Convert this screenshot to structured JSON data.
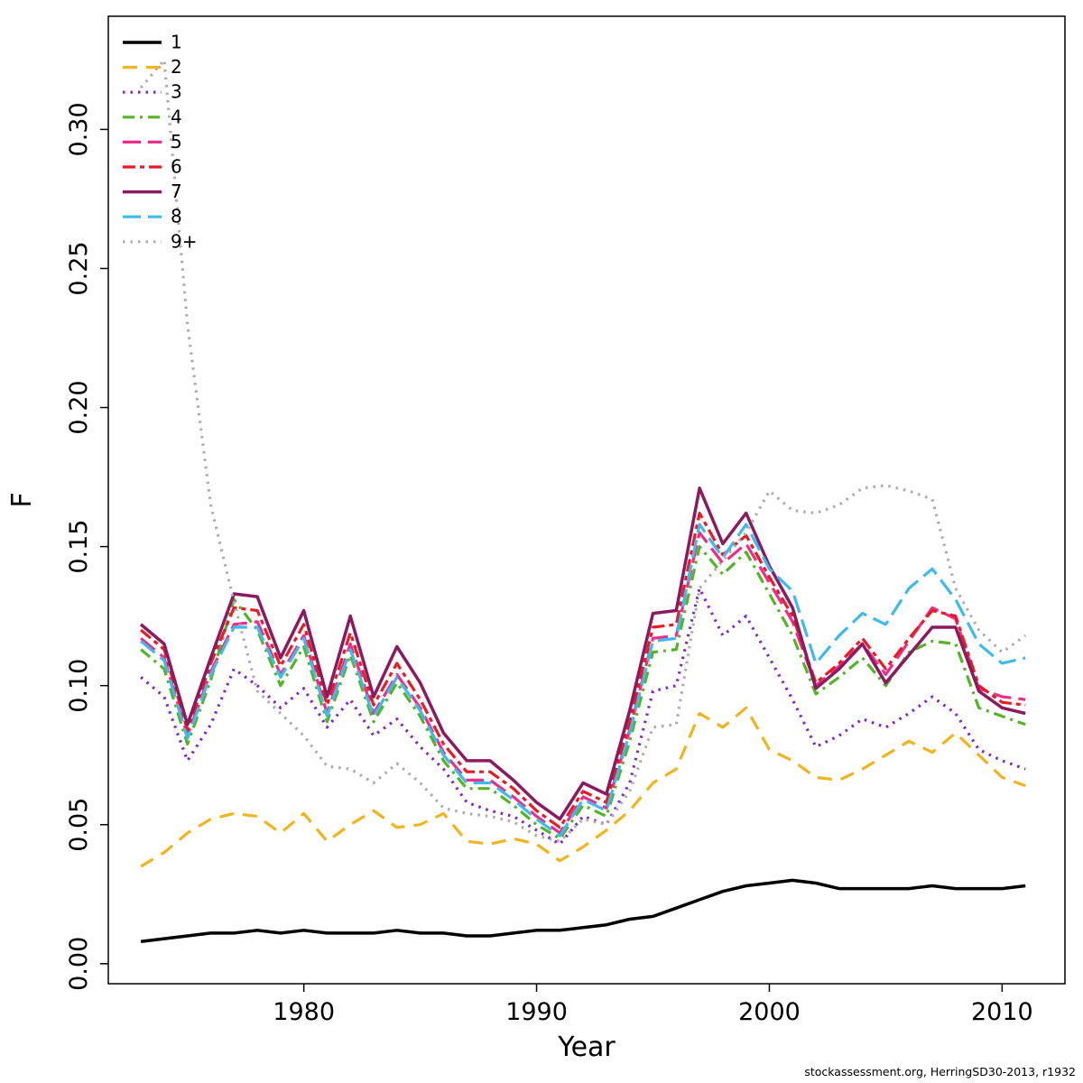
{
  "footer": {
    "credit": "stockassessment.org, HerringSD30-2013, r1932"
  },
  "chart_data": {
    "type": "line",
    "title": "",
    "xlabel": "Year",
    "ylabel": "F",
    "grid": false,
    "legend_position": "top-left",
    "xlim": [
      1971.6,
      2012.7
    ],
    "ylim": [
      -0.0072,
      0.3407
    ],
    "xticks": [
      {
        "v": 1980,
        "label": "1980"
      },
      {
        "v": 1990,
        "label": "1990"
      },
      {
        "v": 2000,
        "label": "2000"
      },
      {
        "v": 2010,
        "label": "2010"
      }
    ],
    "yticks": [
      {
        "v": 0.0,
        "label": "0.00"
      },
      {
        "v": 0.05,
        "label": "0.05"
      },
      {
        "v": 0.1,
        "label": "0.10"
      },
      {
        "v": 0.15,
        "label": "0.15"
      },
      {
        "v": 0.2,
        "label": "0.20"
      },
      {
        "v": 0.25,
        "label": "0.25"
      },
      {
        "v": 0.3,
        "label": "0.30"
      }
    ],
    "x": [
      1973,
      1974,
      1975,
      1976,
      1977,
      1978,
      1979,
      1980,
      1981,
      1982,
      1983,
      1984,
      1985,
      1986,
      1987,
      1988,
      1989,
      1990,
      1991,
      1992,
      1993,
      1994,
      1995,
      1996,
      1997,
      1998,
      1999,
      2000,
      2001,
      2002,
      2003,
      2004,
      2005,
      2006,
      2007,
      2008,
      2009,
      2010,
      2011
    ],
    "series": [
      {
        "name": "1",
        "color": "#000000",
        "dash": "solid",
        "width": 3.5,
        "values": [
          0.008,
          0.009,
          0.01,
          0.011,
          0.011,
          0.012,
          0.011,
          0.012,
          0.011,
          0.011,
          0.011,
          0.012,
          0.011,
          0.011,
          0.01,
          0.01,
          0.011,
          0.012,
          0.012,
          0.013,
          0.014,
          0.016,
          0.017,
          0.02,
          0.023,
          0.026,
          0.028,
          0.029,
          0.03,
          0.029,
          0.027,
          0.027,
          0.027,
          0.027,
          0.028,
          0.027,
          0.027,
          0.027,
          0.028
        ]
      },
      {
        "name": "2",
        "color": "#F0B51C",
        "dash": "dashed",
        "width": 3.2,
        "values": [
          0.035,
          0.04,
          0.047,
          0.052,
          0.054,
          0.053,
          0.047,
          0.054,
          0.044,
          0.05,
          0.055,
          0.049,
          0.05,
          0.054,
          0.044,
          0.043,
          0.045,
          0.043,
          0.037,
          0.042,
          0.048,
          0.055,
          0.065,
          0.07,
          0.09,
          0.085,
          0.092,
          0.077,
          0.073,
          0.067,
          0.066,
          0.07,
          0.075,
          0.08,
          0.076,
          0.083,
          0.075,
          0.067,
          0.064
        ]
      },
      {
        "name": "3",
        "color": "#7D26CD",
        "dash": "dotted",
        "width": 3.2,
        "values": [
          0.103,
          0.096,
          0.073,
          0.086,
          0.106,
          0.1,
          0.092,
          0.099,
          0.085,
          0.095,
          0.082,
          0.088,
          0.078,
          0.07,
          0.058,
          0.055,
          0.053,
          0.048,
          0.043,
          0.053,
          0.05,
          0.065,
          0.098,
          0.1,
          0.135,
          0.118,
          0.125,
          0.11,
          0.095,
          0.078,
          0.082,
          0.088,
          0.085,
          0.09,
          0.096,
          0.09,
          0.077,
          0.073,
          0.07
        ]
      },
      {
        "name": "4",
        "color": "#54B427",
        "dash": "dashdot",
        "width": 3.2,
        "values": [
          0.113,
          0.106,
          0.079,
          0.102,
          0.131,
          0.12,
          0.1,
          0.114,
          0.087,
          0.111,
          0.087,
          0.101,
          0.089,
          0.073,
          0.063,
          0.063,
          0.057,
          0.05,
          0.045,
          0.057,
          0.053,
          0.08,
          0.112,
          0.113,
          0.15,
          0.14,
          0.148,
          0.133,
          0.118,
          0.097,
          0.103,
          0.11,
          0.1,
          0.112,
          0.116,
          0.115,
          0.092,
          0.089,
          0.086
        ]
      },
      {
        "name": "5",
        "color": "#EE2C8C",
        "dash": "longdash",
        "width": 3.2,
        "values": [
          0.117,
          0.11,
          0.082,
          0.105,
          0.122,
          0.123,
          0.104,
          0.118,
          0.09,
          0.115,
          0.09,
          0.104,
          0.092,
          0.076,
          0.066,
          0.066,
          0.06,
          0.053,
          0.047,
          0.06,
          0.056,
          0.084,
          0.117,
          0.118,
          0.155,
          0.144,
          0.151,
          0.137,
          0.123,
          0.1,
          0.107,
          0.115,
          0.104,
          0.116,
          0.128,
          0.124,
          0.099,
          0.096,
          0.095
        ]
      },
      {
        "name": "6",
        "color": "#EC1B23",
        "dash": "twodash",
        "width": 3.2,
        "values": [
          0.12,
          0.113,
          0.084,
          0.108,
          0.128,
          0.127,
          0.107,
          0.122,
          0.093,
          0.119,
          0.093,
          0.108,
          0.095,
          0.079,
          0.069,
          0.069,
          0.063,
          0.055,
          0.049,
          0.062,
          0.058,
          0.087,
          0.121,
          0.122,
          0.162,
          0.147,
          0.154,
          0.139,
          0.125,
          0.101,
          0.108,
          0.117,
          0.106,
          0.117,
          0.127,
          0.125,
          0.1,
          0.094,
          0.093
        ]
      },
      {
        "name": "7",
        "color": "#8B1A60",
        "dash": "solid",
        "width": 3.5,
        "values": [
          0.122,
          0.115,
          0.086,
          0.11,
          0.133,
          0.132,
          0.11,
          0.127,
          0.096,
          0.125,
          0.096,
          0.114,
          0.101,
          0.083,
          0.073,
          0.073,
          0.066,
          0.058,
          0.052,
          0.065,
          0.061,
          0.091,
          0.126,
          0.127,
          0.171,
          0.151,
          0.162,
          0.143,
          0.128,
          0.099,
          0.106,
          0.115,
          0.101,
          0.111,
          0.121,
          0.121,
          0.098,
          0.092,
          0.09
        ]
      },
      {
        "name": "8",
        "color": "#3FBBEB",
        "dash": "longdash",
        "width": 3.2,
        "values": [
          0.116,
          0.109,
          0.081,
          0.104,
          0.121,
          0.121,
          0.103,
          0.117,
          0.089,
          0.113,
          0.089,
          0.103,
          0.091,
          0.075,
          0.065,
          0.065,
          0.059,
          0.052,
          0.046,
          0.059,
          0.055,
          0.083,
          0.116,
          0.117,
          0.158,
          0.146,
          0.158,
          0.142,
          0.134,
          0.108,
          0.118,
          0.126,
          0.122,
          0.135,
          0.142,
          0.131,
          0.115,
          0.108,
          0.11
        ]
      },
      {
        "name": "9+",
        "color": "#ACACAC",
        "dash": "dotted",
        "width": 3.2,
        "values": [
          0.315,
          0.325,
          0.23,
          0.165,
          0.13,
          0.098,
          0.09,
          0.082,
          0.071,
          0.07,
          0.065,
          0.072,
          0.065,
          0.056,
          0.054,
          0.053,
          0.051,
          0.046,
          0.044,
          0.052,
          0.05,
          0.062,
          0.085,
          0.086,
          0.135,
          0.145,
          0.155,
          0.17,
          0.163,
          0.162,
          0.165,
          0.171,
          0.172,
          0.17,
          0.167,
          0.135,
          0.12,
          0.112,
          0.118
        ]
      }
    ]
  }
}
